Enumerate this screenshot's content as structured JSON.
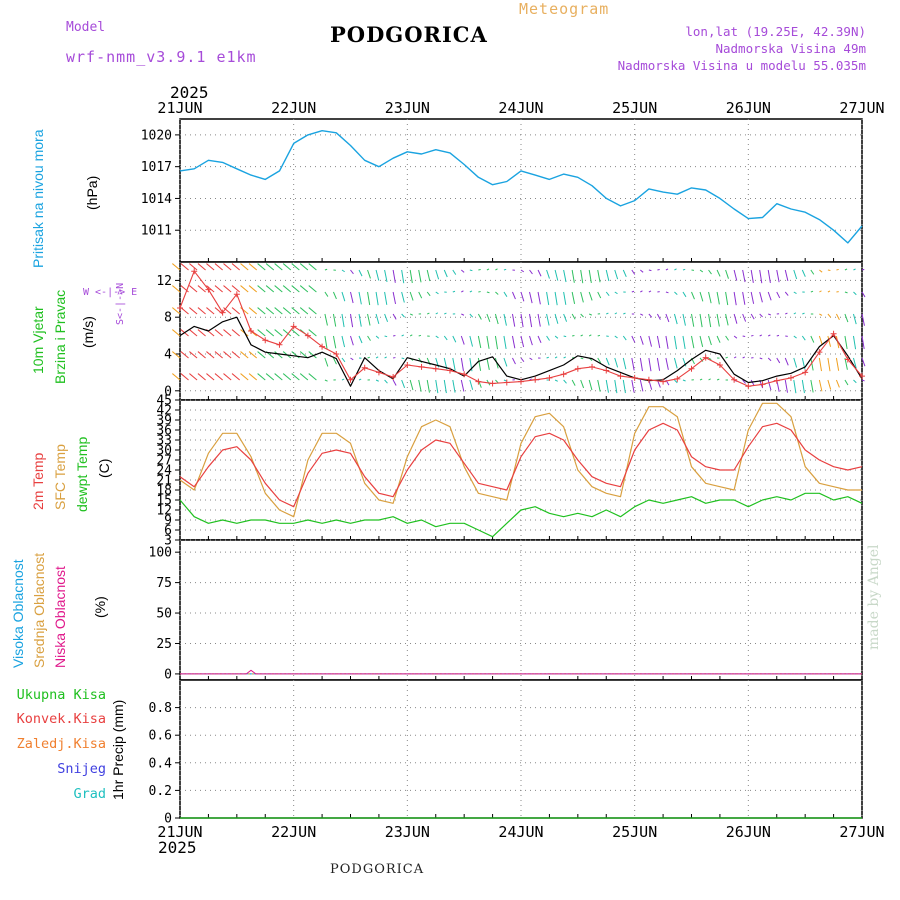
{
  "header": {
    "model_label": "Model",
    "model_name": "wrf-nmm_v3.9.1 e1km",
    "title": "PODGORICA",
    "meteogram": "Meteogram",
    "lonlat": "lon,lat (19.25E, 42.39N)",
    "elevation": "Nadmorska Visina 49m",
    "model_elevation": "Nadmorska Visina u modelu 55.035m"
  },
  "footer": {
    "station": "PODGORICA",
    "credit": "made by Angel"
  },
  "year_top": "2025",
  "year_bottom": "2025",
  "days": [
    "21JUN",
    "22JUN",
    "23JUN",
    "24JUN",
    "25JUN",
    "26JUN",
    "27JUN"
  ],
  "panels": {
    "pressure": {
      "ylabel_a": "Pritisak na nivou mora",
      "unit": "(hPa)"
    },
    "wind": {
      "ylabel_a": "10m Vjetar",
      "ylabel_b": "Brzina i Pravac",
      "unit": "(m/s)",
      "compass_h": "W <-|-> E",
      "compass_v": "S<-|->N"
    },
    "temp": {
      "ylabel_a": "2m Temp",
      "ylabel_b": "SFC Temp",
      "ylabel_c": "dewpt Temp",
      "unit": "(C)"
    },
    "cloud": {
      "ylabel_a": "Visoka Oblacnost",
      "ylabel_b": "Srednja Oblacnost",
      "ylabel_c": "Niska Oblacnost",
      "unit": "(%)"
    },
    "precip": {
      "unit": "1hr Precip (mm)",
      "legend": [
        "Ukupna Kisa",
        "Konvek.Kisa",
        "Zaledj.Kisa",
        "Snijeg",
        "Grad"
      ]
    }
  },
  "colors": {
    "pressure": "#1aa3e0",
    "temp2m": "#e84040",
    "sfc": "#d9a040",
    "dew": "#20c020",
    "accent": "#a64bd9",
    "cloud_high": "#1aa3e0",
    "cloud_mid": "#d9a040",
    "cloud_low": "#e01a8c",
    "legend": [
      "#20c020",
      "#e84040",
      "#f08030",
      "#4040e0",
      "#20c0c0"
    ]
  },
  "chart_data": [
    {
      "type": "line",
      "title": "",
      "ylabel": "Pritisak na nivou mora (hPa)",
      "x_unit": "hours since 21JUN 00UTC",
      "ylim": [
        1008,
        1021.5
      ],
      "yticks": [
        1011,
        1014,
        1017,
        1020
      ],
      "series": [
        {
          "name": "Pritisak na nivou mora",
          "x": [
            0,
            3,
            6,
            9,
            12,
            15,
            18,
            21,
            24,
            27,
            30,
            33,
            36,
            39,
            42,
            45,
            48,
            51,
            54,
            57,
            60,
            63,
            66,
            69,
            72,
            75,
            78,
            81,
            84,
            87,
            90,
            93,
            96,
            99,
            102,
            105,
            108,
            111,
            114,
            117,
            120,
            123,
            126,
            129,
            132,
            135,
            138,
            141,
            144
          ],
          "values": [
            1016.6,
            1016.8,
            1017.6,
            1017.4,
            1016.8,
            1016.2,
            1015.8,
            1016.6,
            1019.2,
            1020.0,
            1020.4,
            1020.2,
            1019.0,
            1017.6,
            1017.0,
            1017.8,
            1018.4,
            1018.2,
            1018.6,
            1018.3,
            1017.2,
            1016.0,
            1015.3,
            1015.6,
            1016.6,
            1016.2,
            1015.8,
            1016.3,
            1016.0,
            1015.2,
            1014.0,
            1013.3,
            1013.8,
            1014.9,
            1014.6,
            1014.4,
            1015.0,
            1014.8,
            1014.0,
            1013.0,
            1012.1,
            1012.2,
            1013.5,
            1013.0,
            1012.7,
            1012.0,
            1011.0,
            1009.8,
            1011.4
          ]
        }
      ]
    },
    {
      "type": "line",
      "title": "",
      "ylabel": "10m Vjetar Brzina i Pravac (m/s)",
      "x_unit": "hours since 21JUN 00UTC",
      "ylim": [
        -1,
        14
      ],
      "yticks": [
        0,
        4,
        8,
        12
      ],
      "series": [
        {
          "name": "brzina",
          "x": [
            0,
            3,
            6,
            9,
            12,
            15,
            18,
            21,
            24,
            27,
            30,
            33,
            36,
            39,
            42,
            45,
            48,
            51,
            54,
            57,
            60,
            63,
            66,
            69,
            72,
            75,
            78,
            81,
            84,
            87,
            90,
            93,
            96,
            99,
            102,
            105,
            108,
            111,
            114,
            117,
            120,
            123,
            126,
            129,
            132,
            135,
            138,
            141,
            144
          ],
          "values": [
            6.0,
            7.0,
            6.5,
            7.5,
            8.0,
            5.0,
            4.2,
            4.0,
            3.8,
            3.6,
            4.2,
            3.5,
            0.5,
            3.6,
            2.2,
            1.3,
            3.6,
            3.2,
            2.8,
            2.4,
            1.6,
            3.2,
            3.7,
            1.6,
            1.2,
            1.6,
            2.2,
            2.8,
            3.8,
            3.5,
            2.6,
            2.0,
            1.4,
            1.1,
            1.2,
            2.2,
            3.4,
            4.4,
            4.0,
            1.8,
            0.9,
            1.1,
            1.6,
            1.9,
            2.6,
            4.8,
            6.0,
            3.8,
            1.3
          ]
        },
        {
          "name": "udari",
          "x": [
            0,
            3,
            6,
            9,
            12,
            15,
            18,
            21,
            24,
            27,
            30,
            33,
            36,
            39,
            42,
            45,
            48,
            51,
            54,
            57,
            60,
            63,
            66,
            69,
            72,
            75,
            78,
            81,
            84,
            87,
            90,
            93,
            96,
            99,
            102,
            105,
            108,
            111,
            114,
            117,
            120,
            123,
            126,
            129,
            132,
            135,
            138,
            141,
            144
          ],
          "values": [
            9.0,
            13.0,
            11.0,
            8.5,
            10.5,
            6.5,
            5.5,
            5.0,
            7.0,
            6.0,
            4.8,
            4.0,
            1.2,
            2.5,
            2.0,
            1.5,
            2.8,
            2.6,
            2.4,
            2.2,
            1.8,
            1.0,
            0.8,
            0.9,
            1.0,
            1.2,
            1.4,
            1.8,
            2.4,
            2.6,
            2.2,
            1.6,
            1.4,
            1.2,
            1.0,
            1.3,
            2.4,
            3.6,
            2.8,
            1.2,
            0.5,
            0.7,
            1.1,
            1.4,
            2.0,
            4.2,
            6.2,
            3.4,
            1.6
          ]
        }
      ]
    },
    {
      "type": "line",
      "title": "",
      "ylabel": "(C)",
      "x_unit": "hours since 21JUN 00UTC",
      "ylim": [
        3,
        45
      ],
      "yticks": [
        3,
        6,
        9,
        12,
        15,
        18,
        21,
        24,
        27,
        30,
        33,
        36,
        39,
        42,
        45
      ],
      "series": [
        {
          "name": "2m Temp",
          "x": [
            0,
            3,
            6,
            9,
            12,
            15,
            18,
            21,
            24,
            27,
            30,
            33,
            36,
            39,
            42,
            45,
            48,
            51,
            54,
            57,
            60,
            63,
            66,
            69,
            72,
            75,
            78,
            81,
            84,
            87,
            90,
            93,
            96,
            99,
            102,
            105,
            108,
            111,
            114,
            117,
            120,
            123,
            126,
            129,
            132,
            135,
            138,
            141,
            144
          ],
          "values": [
            22,
            19,
            25,
            30,
            31,
            27,
            20,
            15,
            13,
            23,
            29,
            30,
            29,
            22,
            17,
            16,
            24,
            30,
            33,
            32,
            26,
            20,
            19,
            18,
            28,
            34,
            35,
            33,
            27,
            22,
            20,
            19,
            30,
            36,
            38,
            36,
            28,
            25,
            24,
            24,
            31,
            37,
            38,
            36,
            30,
            27,
            25,
            24,
            25
          ]
        },
        {
          "name": "SFC Temp",
          "x": [
            0,
            3,
            6,
            9,
            12,
            15,
            18,
            21,
            24,
            27,
            30,
            33,
            36,
            39,
            42,
            45,
            48,
            51,
            54,
            57,
            60,
            63,
            66,
            69,
            72,
            75,
            78,
            81,
            84,
            87,
            90,
            93,
            96,
            99,
            102,
            105,
            108,
            111,
            114,
            117,
            120,
            123,
            126,
            129,
            132,
            135,
            138,
            141,
            144
          ],
          "values": [
            21,
            18,
            29,
            35,
            35,
            28,
            17,
            12,
            10,
            27,
            35,
            35,
            32,
            20,
            15,
            14,
            28,
            37,
            39,
            37,
            25,
            17,
            16,
            15,
            32,
            40,
            41,
            37,
            24,
            19,
            17,
            16,
            35,
            43,
            43,
            40,
            25,
            20,
            19,
            18,
            36,
            44,
            44,
            40,
            25,
            20,
            19,
            18,
            18
          ]
        },
        {
          "name": "dewpt Temp",
          "x": [
            0,
            3,
            6,
            9,
            12,
            15,
            18,
            21,
            24,
            27,
            30,
            33,
            36,
            39,
            42,
            45,
            48,
            51,
            54,
            57,
            60,
            63,
            66,
            69,
            72,
            75,
            78,
            81,
            84,
            87,
            90,
            93,
            96,
            99,
            102,
            105,
            108,
            111,
            114,
            117,
            120,
            123,
            126,
            129,
            132,
            135,
            138,
            141,
            144
          ],
          "values": [
            15,
            10,
            8,
            9,
            8,
            9,
            9,
            8,
            8,
            9,
            8,
            9,
            8,
            9,
            9,
            10,
            8,
            9,
            7,
            8,
            8,
            6,
            4,
            8,
            12,
            13,
            11,
            10,
            11,
            10,
            12,
            10,
            13,
            15,
            14,
            15,
            16,
            14,
            15,
            15,
            13,
            15,
            16,
            15,
            17,
            17,
            15,
            16,
            14
          ]
        }
      ]
    },
    {
      "type": "line",
      "title": "",
      "ylabel": "(%)",
      "x_unit": "hours since 21JUN 00UTC",
      "ylim": [
        -5,
        110
      ],
      "yticks": [
        0,
        25,
        50,
        75,
        100
      ],
      "series": [
        {
          "name": "Niska Oblacnost",
          "x": [
            0,
            12,
            14,
            15,
            16,
            144
          ],
          "values": [
            0,
            0,
            0,
            3,
            0,
            0
          ]
        }
      ]
    },
    {
      "type": "line",
      "title": "",
      "ylabel": "1hr Precip (mm)",
      "x_unit": "hours since 21JUN 00UTC",
      "ylim": [
        0,
        1.0
      ],
      "yticks": [
        0,
        0.2,
        0.4,
        0.6,
        0.8
      ],
      "series": [
        {
          "name": "Ukupna Kisa",
          "x": [
            0,
            144
          ],
          "values": [
            0,
            0
          ]
        }
      ]
    }
  ]
}
